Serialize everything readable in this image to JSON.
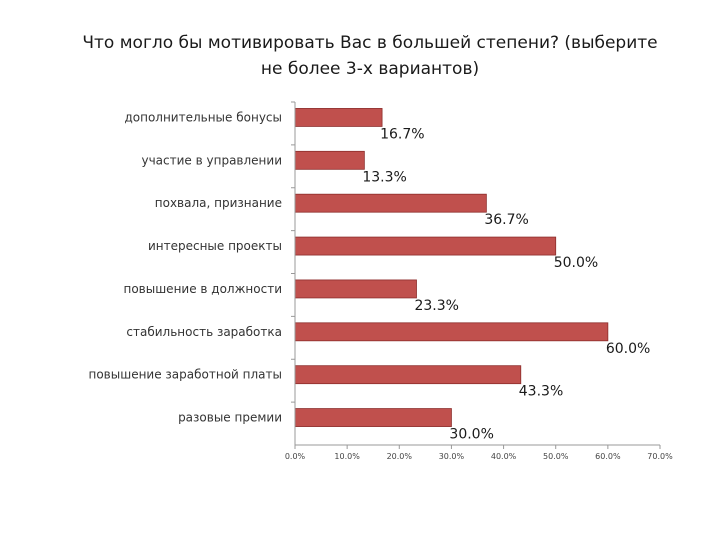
{
  "chart_data": {
    "type": "bar",
    "orientation": "horizontal",
    "title": "Что могло бы мотивировать Вас в большей степени? (выберите не более 3-х вариантов)",
    "categories": [
      "дополнительные бонусы",
      "участие в управлении",
      "похвала, признание",
      "интересные проекты",
      "повышение в должности",
      "стабильность заработка",
      "повышение заработной платы",
      "разовые премии"
    ],
    "values": [
      16.7,
      13.3,
      36.7,
      50.0,
      23.3,
      60.0,
      43.3,
      30.0
    ],
    "value_labels": [
      "16.7%",
      "13.3%",
      "36.7%",
      "50.0%",
      "23.3%",
      "60.0%",
      "43.3%",
      "30.0%"
    ],
    "xlim": [
      0,
      70
    ],
    "xticks": [
      0,
      10,
      20,
      30,
      40,
      50,
      60,
      70
    ],
    "xtick_labels": [
      "0.0%",
      "10.0%",
      "20.0%",
      "30.0%",
      "40.0%",
      "50.0%",
      "60.0%",
      "70.0%"
    ],
    "grid": false,
    "legend": "none",
    "colors": {
      "bar_fill": "#c0504d",
      "bar_edge": "#8c2d2b",
      "axis": "#999999"
    }
  }
}
